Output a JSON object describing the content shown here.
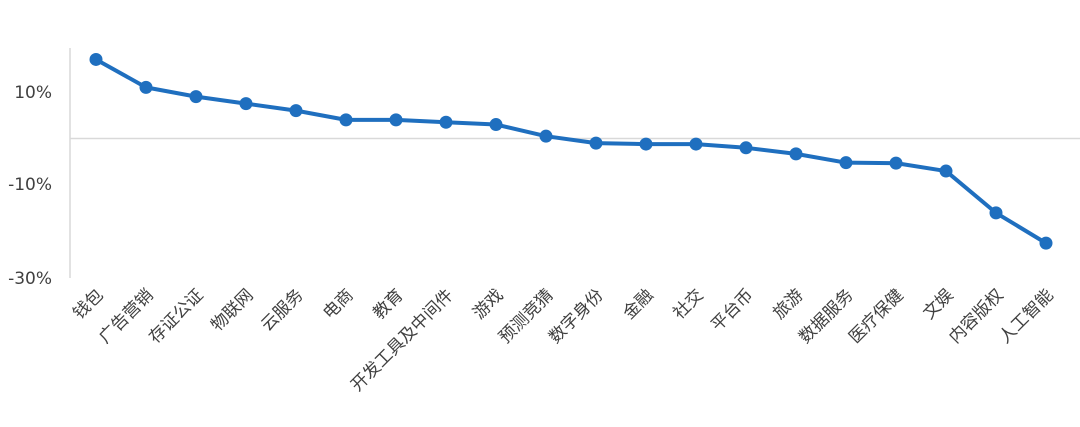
{
  "chart_data": {
    "type": "line",
    "title": "",
    "xlabel": "",
    "ylabel": "",
    "y_ticks": [
      "10%",
      "-10%",
      "-30%"
    ],
    "categories": [
      "钱包",
      "广告营销",
      "存证公证",
      "物联网",
      "云服务",
      "电商",
      "教育",
      "开发工具及中间件",
      "游戏",
      "预测竞猜",
      "数字身份",
      "金融",
      "社交",
      "平台币",
      "旅游",
      "数据服务",
      "医疗保健",
      "文娱",
      "内容版权",
      "人工智能"
    ],
    "series": [
      {
        "values": [
          17,
          11,
          9,
          7.5,
          6,
          4,
          4,
          3.5,
          3,
          0.5,
          -1,
          -1.2,
          -1.2,
          -2,
          -3.3,
          -5.2,
          -5.3,
          -7,
          -16,
          -22.5
        ]
      }
    ],
    "ylim": [
      -30,
      20
    ],
    "grid": false,
    "legend": "none",
    "colors": {
      "line": "#1f6fbf",
      "axis": "#d9d9d9",
      "text": "#404040"
    }
  }
}
